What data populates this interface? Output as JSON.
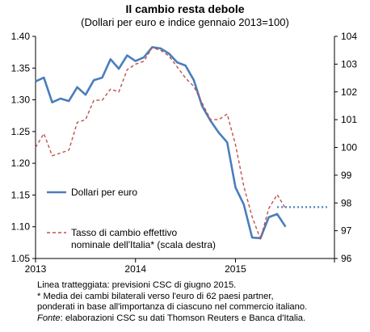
{
  "title": "Il cambio resta debole",
  "subtitle": "(Dollari per euro e indice gennaio 2013=100)",
  "notes": [
    {
      "prefix": "",
      "text": "Linea tratteggiata: previsioni CSC di giugno 2015."
    },
    {
      "prefix": "",
      "text": "* Media dei cambi bilaterali verso l'euro di 62 paesi partner,"
    },
    {
      "prefix": "",
      "text": "ponderati in base all'importanza di ciascuno nel commercio italiano."
    },
    {
      "prefix": "Fonte",
      "text": ": elaborazioni CSC su dati Thomson Reuters e Banca d'Italia."
    }
  ],
  "chart_data": {
    "type": "line",
    "x_tick_labels": [
      "2013",
      "2014",
      "2015"
    ],
    "x_start_year": 2013,
    "x_end_year": 2015.99,
    "y_left": {
      "min": 1.05,
      "max": 1.4,
      "ticks": [
        "1.05",
        "1.10",
        "1.15",
        "1.20",
        "1.25",
        "1.30",
        "1.35",
        "1.40"
      ]
    },
    "y_right": {
      "min": 96,
      "max": 104,
      "ticks": [
        "96",
        "97",
        "98",
        "99",
        "100",
        "101",
        "102",
        "103",
        "104"
      ]
    },
    "grid": false,
    "series": [
      {
        "name": "Dollari per euro",
        "axis": "left",
        "style": "solid",
        "color": "#4a7ebb",
        "x": [
          "2013-01",
          "2013-02",
          "2013-03",
          "2013-04",
          "2013-05",
          "2013-06",
          "2013-07",
          "2013-08",
          "2013-09",
          "2013-10",
          "2013-11",
          "2013-12",
          "2014-01",
          "2014-02",
          "2014-03",
          "2014-04",
          "2014-05",
          "2014-06",
          "2014-07",
          "2014-08",
          "2014-09",
          "2014-10",
          "2014-11",
          "2014-12",
          "2015-01",
          "2015-02",
          "2015-03",
          "2015-04",
          "2015-05",
          "2015-06",
          "2015-07"
        ],
        "values": [
          1.329,
          1.335,
          1.296,
          1.302,
          1.298,
          1.32,
          1.308,
          1.331,
          1.335,
          1.364,
          1.349,
          1.37,
          1.361,
          1.367,
          1.383,
          1.381,
          1.373,
          1.359,
          1.354,
          1.331,
          1.29,
          1.267,
          1.248,
          1.233,
          1.162,
          1.135,
          1.083,
          1.082,
          1.115,
          1.12,
          1.1
        ]
      },
      {
        "name": "Tasso di cambio effettivo nominale dell'Italia* (scala destra)",
        "axis": "right",
        "style": "dashed",
        "color": "#c0504d",
        "x": [
          "2013-01",
          "2013-02",
          "2013-03",
          "2013-04",
          "2013-05",
          "2013-06",
          "2013-07",
          "2013-08",
          "2013-09",
          "2013-10",
          "2013-11",
          "2013-12",
          "2014-01",
          "2014-02",
          "2014-03",
          "2014-04",
          "2014-05",
          "2014-06",
          "2014-07",
          "2014-08",
          "2014-09",
          "2014-10",
          "2014-11",
          "2014-12",
          "2015-01",
          "2015-02",
          "2015-03",
          "2015-04",
          "2015-05",
          "2015-06",
          "2015-07"
        ],
        "values": [
          100.0,
          100.5,
          99.7,
          99.8,
          99.9,
          100.9,
          101.0,
          101.7,
          101.7,
          102.1,
          102.0,
          102.8,
          103.0,
          103.1,
          103.6,
          103.5,
          103.3,
          102.9,
          102.5,
          102.2,
          101.6,
          101.0,
          101.0,
          101.2,
          100.1,
          98.6,
          97.5,
          96.7,
          97.8,
          98.3,
          97.8
        ]
      },
      {
        "name": "",
        "axis": "right",
        "style": "dotted",
        "color": "#4a7ebb",
        "x": [
          "2015-06",
          "2015-12"
        ],
        "values": [
          97.85,
          97.85
        ]
      }
    ],
    "legend": [
      {
        "label_lines": [
          "Dollari per euro"
        ],
        "style": "solid",
        "color": "#4a7ebb"
      },
      {
        "label_lines": [
          "Tasso di cambio effettivo",
          "nominale dell'Italia* (scala destra)"
        ],
        "style": "dashed",
        "color": "#c0504d"
      }
    ],
    "legend_placement": "lower-left"
  }
}
